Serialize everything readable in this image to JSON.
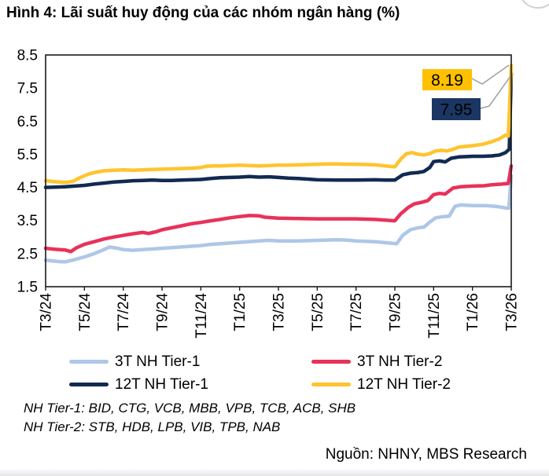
{
  "page": {
    "title": "Hình 4: Lãi suất huy động của các nhóm ngân hàng (%)",
    "footnotes": {
      "tier1": "NH Tier-1: BID, CTG, VCB, MBB, VPB, TCB, ACB, SHB",
      "tier2": "NH Tier-2: STB, HDB, LPB, VIB, TPB, NAB"
    },
    "source": "Nguồn: NHNY, MBS Research"
  },
  "chart_data": {
    "type": "line",
    "title": "Hình 4: Lãi suất huy động của các nhóm ngân hàng (%)",
    "xlabel": "",
    "ylabel": "",
    "grid": false,
    "legend_position": "bottom",
    "ylim": [
      1.5,
      8.5
    ],
    "y_ticks": [
      1.5,
      2.5,
      3.5,
      4.5,
      5.5,
      6.5,
      7.5,
      8.5
    ],
    "x_range_months": [
      0,
      24
    ],
    "x_tick_positions": [
      0,
      2,
      4,
      6,
      8,
      10,
      12,
      14,
      16,
      18,
      20,
      22,
      24
    ],
    "x_tick_labels": [
      "T3/24",
      "T5/24",
      "T7/24",
      "T9/24",
      "T11/24",
      "T1/25",
      "T3/25",
      "T5/25",
      "T7/25",
      "T9/25",
      "T11/25",
      "T1/26",
      "T3/26"
    ],
    "series": [
      {
        "name": "3T NH Tier-1",
        "color": "#AEC7E8",
        "points": [
          [
            0,
            2.3
          ],
          [
            0.7,
            2.26
          ],
          [
            1,
            2.25
          ],
          [
            1.5,
            2.32
          ],
          [
            2,
            2.4
          ],
          [
            2.5,
            2.5
          ],
          [
            3,
            2.62
          ],
          [
            3.3,
            2.7
          ],
          [
            3.7,
            2.66
          ],
          [
            4,
            2.62
          ],
          [
            4.5,
            2.6
          ],
          [
            5,
            2.62
          ],
          [
            5.5,
            2.64
          ],
          [
            6,
            2.66
          ],
          [
            7,
            2.7
          ],
          [
            8,
            2.74
          ],
          [
            8.5,
            2.78
          ],
          [
            9,
            2.8
          ],
          [
            10,
            2.84
          ],
          [
            11,
            2.88
          ],
          [
            11.5,
            2.9
          ],
          [
            12,
            2.88
          ],
          [
            13,
            2.88
          ],
          [
            14,
            2.9
          ],
          [
            15,
            2.92
          ],
          [
            15.5,
            2.91
          ],
          [
            16,
            2.88
          ],
          [
            17,
            2.86
          ],
          [
            17.7,
            2.82
          ],
          [
            18.1,
            2.8
          ],
          [
            18.4,
            3.05
          ],
          [
            18.8,
            3.22
          ],
          [
            19.2,
            3.28
          ],
          [
            19.5,
            3.3
          ],
          [
            19.8,
            3.45
          ],
          [
            20.1,
            3.58
          ],
          [
            20.5,
            3.62
          ],
          [
            20.8,
            3.63
          ],
          [
            21.1,
            3.93
          ],
          [
            21.4,
            3.97
          ],
          [
            22,
            3.95
          ],
          [
            22.7,
            3.95
          ],
          [
            23.3,
            3.92
          ],
          [
            23.7,
            3.88
          ],
          [
            23.88,
            3.87
          ],
          [
            24,
            4.85
          ]
        ]
      },
      {
        "name": "3T NH Tier-2",
        "color": "#E8325A",
        "points": [
          [
            0,
            2.66
          ],
          [
            0.5,
            2.63
          ],
          [
            1,
            2.61
          ],
          [
            1.3,
            2.56
          ],
          [
            1.6,
            2.68
          ],
          [
            2,
            2.78
          ],
          [
            2.5,
            2.86
          ],
          [
            3,
            2.94
          ],
          [
            3.5,
            3.0
          ],
          [
            4,
            3.05
          ],
          [
            4.5,
            3.1
          ],
          [
            5,
            3.14
          ],
          [
            5.3,
            3.11
          ],
          [
            5.7,
            3.16
          ],
          [
            6,
            3.22
          ],
          [
            6.5,
            3.28
          ],
          [
            7,
            3.34
          ],
          [
            7.5,
            3.4
          ],
          [
            8,
            3.44
          ],
          [
            8.5,
            3.49
          ],
          [
            9,
            3.53
          ],
          [
            9.5,
            3.58
          ],
          [
            10,
            3.62
          ],
          [
            10.5,
            3.65
          ],
          [
            11,
            3.64
          ],
          [
            11.3,
            3.6
          ],
          [
            11.7,
            3.58
          ],
          [
            12,
            3.57
          ],
          [
            13,
            3.56
          ],
          [
            14,
            3.55
          ],
          [
            15,
            3.55
          ],
          [
            16,
            3.55
          ],
          [
            17,
            3.53
          ],
          [
            17.5,
            3.51
          ],
          [
            18,
            3.49
          ],
          [
            18.3,
            3.7
          ],
          [
            18.7,
            3.9
          ],
          [
            19,
            4.0
          ],
          [
            19.4,
            4.05
          ],
          [
            19.7,
            4.1
          ],
          [
            20,
            4.28
          ],
          [
            20.3,
            4.32
          ],
          [
            20.6,
            4.3
          ],
          [
            21,
            4.48
          ],
          [
            21.4,
            4.52
          ],
          [
            22,
            4.54
          ],
          [
            22.6,
            4.55
          ],
          [
            23,
            4.58
          ],
          [
            23.5,
            4.6
          ],
          [
            23.85,
            4.62
          ],
          [
            24,
            5.15
          ]
        ]
      },
      {
        "name": "12T NH Tier-1",
        "color": "#122A52",
        "points": [
          [
            0,
            4.5
          ],
          [
            0.5,
            4.51
          ],
          [
            1,
            4.52
          ],
          [
            1.5,
            4.54
          ],
          [
            2,
            4.56
          ],
          [
            2.5,
            4.6
          ],
          [
            3,
            4.63
          ],
          [
            3.5,
            4.66
          ],
          [
            4,
            4.68
          ],
          [
            4.5,
            4.7
          ],
          [
            5,
            4.71
          ],
          [
            5.5,
            4.72
          ],
          [
            6,
            4.71
          ],
          [
            6.5,
            4.71
          ],
          [
            7,
            4.72
          ],
          [
            8,
            4.74
          ],
          [
            8.5,
            4.77
          ],
          [
            9,
            4.79
          ],
          [
            9.5,
            4.8
          ],
          [
            10,
            4.81
          ],
          [
            10.5,
            4.83
          ],
          [
            11,
            4.81
          ],
          [
            11.5,
            4.82
          ],
          [
            12,
            4.8
          ],
          [
            12.5,
            4.78
          ],
          [
            13,
            4.77
          ],
          [
            13.5,
            4.75
          ],
          [
            14,
            4.73
          ],
          [
            15,
            4.72
          ],
          [
            16,
            4.72
          ],
          [
            17,
            4.73
          ],
          [
            17.5,
            4.72
          ],
          [
            18,
            4.72
          ],
          [
            18.4,
            4.88
          ],
          [
            18.8,
            4.93
          ],
          [
            19.2,
            4.95
          ],
          [
            19.5,
            4.98
          ],
          [
            19.8,
            5.1
          ],
          [
            20,
            5.28
          ],
          [
            20.3,
            5.3
          ],
          [
            20.6,
            5.27
          ],
          [
            20.9,
            5.38
          ],
          [
            21.3,
            5.42
          ],
          [
            21.7,
            5.43
          ],
          [
            22,
            5.44
          ],
          [
            22.5,
            5.44
          ],
          [
            23,
            5.45
          ],
          [
            23.4,
            5.48
          ],
          [
            23.7,
            5.55
          ],
          [
            23.9,
            5.65
          ],
          [
            24,
            7.95
          ]
        ]
      },
      {
        "name": "12T NH Tier-2",
        "color": "#FFC42E",
        "points": [
          [
            0,
            4.7
          ],
          [
            0.5,
            4.67
          ],
          [
            1,
            4.65
          ],
          [
            1.4,
            4.68
          ],
          [
            1.8,
            4.8
          ],
          [
            2.2,
            4.9
          ],
          [
            2.6,
            4.96
          ],
          [
            3,
            5.0
          ],
          [
            3.5,
            5.02
          ],
          [
            4,
            5.03
          ],
          [
            4.5,
            5.02
          ],
          [
            5,
            5.03
          ],
          [
            5.5,
            5.04
          ],
          [
            6,
            5.05
          ],
          [
            6.5,
            5.06
          ],
          [
            7,
            5.07
          ],
          [
            7.5,
            5.08
          ],
          [
            8,
            5.1
          ],
          [
            8.3,
            5.14
          ],
          [
            8.7,
            5.15
          ],
          [
            9,
            5.15
          ],
          [
            9.5,
            5.16
          ],
          [
            10,
            5.17
          ],
          [
            10.5,
            5.16
          ],
          [
            11,
            5.15
          ],
          [
            11.5,
            5.16
          ],
          [
            12,
            5.17
          ],
          [
            12.5,
            5.17
          ],
          [
            13,
            5.18
          ],
          [
            13.5,
            5.19
          ],
          [
            14,
            5.2
          ],
          [
            14.5,
            5.21
          ],
          [
            15,
            5.21
          ],
          [
            15.5,
            5.2
          ],
          [
            16,
            5.2
          ],
          [
            16.5,
            5.19
          ],
          [
            17,
            5.18
          ],
          [
            17.5,
            5.15
          ],
          [
            18,
            5.12
          ],
          [
            18.3,
            5.35
          ],
          [
            18.6,
            5.52
          ],
          [
            18.9,
            5.55
          ],
          [
            19.2,
            5.5
          ],
          [
            19.5,
            5.48
          ],
          [
            19.8,
            5.52
          ],
          [
            20.1,
            5.6
          ],
          [
            20.4,
            5.62
          ],
          [
            20.7,
            5.6
          ],
          [
            21,
            5.65
          ],
          [
            21.3,
            5.72
          ],
          [
            21.7,
            5.74
          ],
          [
            22,
            5.76
          ],
          [
            22.5,
            5.8
          ],
          [
            23,
            5.88
          ],
          [
            23.4,
            5.97
          ],
          [
            23.7,
            6.08
          ],
          [
            23.85,
            6.05
          ],
          [
            24,
            8.19
          ]
        ]
      }
    ],
    "annotations": [
      {
        "label": "8.19",
        "value": 8.19,
        "series": "12T NH Tier-2",
        "bg": "#FFC000",
        "fg": "#000000"
      },
      {
        "label": "7.95",
        "value": 7.95,
        "series": "12T NH Tier-1",
        "bg": "#1B3663",
        "fg": "#FFFFFF"
      }
    ]
  }
}
